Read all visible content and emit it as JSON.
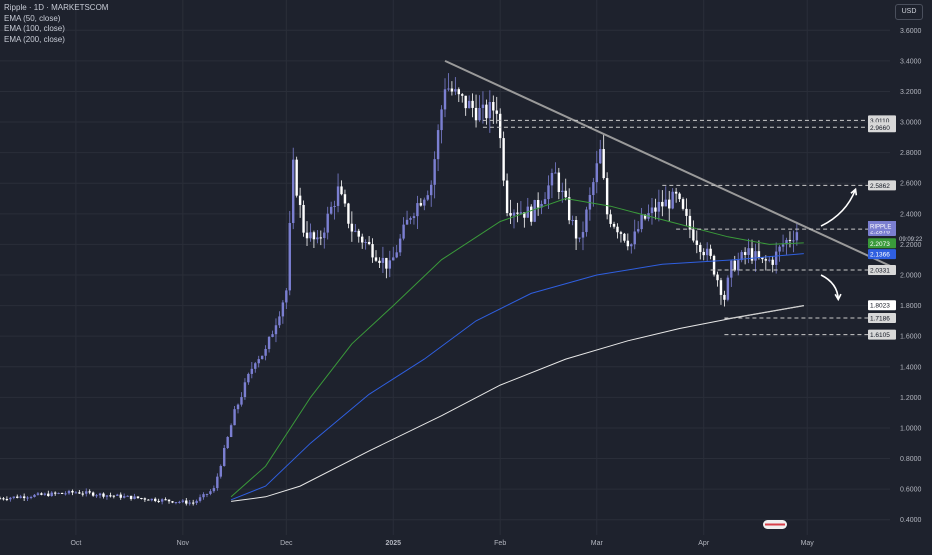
{
  "header": {
    "symbol_line": "Ripple · 1D · MARKETSCOM",
    "indicators": [
      "EMA (50, close)",
      "EMA (100, close)",
      "EMA (200, close)"
    ],
    "currency_button": "USD"
  },
  "colors": {
    "background": "#1e222d",
    "grid": "#2a2e39",
    "axis_text": "#b2b5be",
    "candle_up": "#7b7fd1",
    "candle_down": "#ffffff",
    "ema50": "#3a9a3a",
    "ema100": "#2f5fe0",
    "ema200": "#e8e8e8",
    "trendline": "#9a9a9a",
    "price_tag": "#7b7fd1"
  },
  "chart_data": {
    "type": "candlestick",
    "title": "Ripple · 1D · MARKETSCOM",
    "ylim": [
      0.3,
      3.7
    ],
    "y_ticks": [
      0.4,
      0.6,
      0.8,
      1.0,
      1.2,
      1.4,
      1.6,
      1.8,
      2.0,
      2.2,
      2.4,
      2.6,
      2.8,
      3.0,
      3.2,
      3.4,
      3.6
    ],
    "x_ticks": [
      {
        "label": "Oct",
        "date": "2024-10-01"
      },
      {
        "label": "Nov",
        "date": "2024-11-01"
      },
      {
        "label": "Dec",
        "date": "2024-12-01"
      },
      {
        "label": "2025",
        "date": "2025-01-01"
      },
      {
        "label": "Feb",
        "date": "2025-02-01"
      },
      {
        "label": "Mar",
        "date": "2025-03-01"
      },
      {
        "label": "Apr",
        "date": "2025-04-01"
      },
      {
        "label": "May",
        "date": "2025-05-01"
      }
    ],
    "x_range": [
      "2024-09-09",
      "2025-05-25"
    ],
    "ohlc_keypoints": [
      {
        "date": "2024-09-09",
        "price": 0.54
      },
      {
        "date": "2024-10-01",
        "price": 0.58
      },
      {
        "date": "2024-10-15",
        "price": 0.55
      },
      {
        "date": "2024-11-04",
        "price": 0.51
      },
      {
        "date": "2024-11-10",
        "price": 0.6
      },
      {
        "date": "2024-11-16",
        "price": 1.1
      },
      {
        "date": "2024-11-22",
        "price": 1.45
      },
      {
        "date": "2024-11-25",
        "price": 1.5
      },
      {
        "date": "2024-12-01",
        "price": 1.9
      },
      {
        "date": "2024-12-03",
        "price": 2.7
      },
      {
        "date": "2024-12-06",
        "price": 2.3
      },
      {
        "date": "2024-12-10",
        "price": 2.2
      },
      {
        "date": "2024-12-16",
        "price": 2.55
      },
      {
        "date": "2024-12-20",
        "price": 2.3
      },
      {
        "date": "2024-12-31",
        "price": 2.05
      },
      {
        "date": "2025-01-06",
        "price": 2.4
      },
      {
        "date": "2025-01-12",
        "price": 2.6
      },
      {
        "date": "2025-01-16",
        "price": 3.25
      },
      {
        "date": "2025-01-20",
        "price": 3.15
      },
      {
        "date": "2025-01-27",
        "price": 3.05
      },
      {
        "date": "2025-01-31",
        "price": 3.1
      },
      {
        "date": "2025-02-03",
        "price": 2.45
      },
      {
        "date": "2025-02-10",
        "price": 2.4
      },
      {
        "date": "2025-02-17",
        "price": 2.65
      },
      {
        "date": "2025-02-24",
        "price": 2.2
      },
      {
        "date": "2025-03-02",
        "price": 2.8
      },
      {
        "date": "2025-03-04",
        "price": 2.4
      },
      {
        "date": "2025-03-11",
        "price": 2.2
      },
      {
        "date": "2025-03-14",
        "price": 2.35
      },
      {
        "date": "2025-03-19",
        "price": 2.45
      },
      {
        "date": "2025-03-24",
        "price": 2.5
      },
      {
        "date": "2025-03-28",
        "price": 2.3
      },
      {
        "date": "2025-04-03",
        "price": 2.1
      },
      {
        "date": "2025-04-07",
        "price": 1.85
      },
      {
        "date": "2025-04-09",
        "price": 2.05
      },
      {
        "date": "2025-04-14",
        "price": 2.15
      },
      {
        "date": "2025-04-18",
        "price": 2.08
      },
      {
        "date": "2025-04-21",
        "price": 2.1
      },
      {
        "date": "2025-04-24",
        "price": 2.2
      },
      {
        "date": "2025-04-28",
        "price": 2.29
      }
    ],
    "price_points": [
      {
        "date": "2024-09-09",
        "price": 0.54
      },
      {
        "date": "2024-10-01",
        "price": 0.58
      },
      {
        "date": "2024-10-15",
        "price": 0.55
      },
      {
        "date": "2024-11-04",
        "price": 0.51
      },
      {
        "date": "2024-11-10",
        "price": 0.6
      },
      {
        "date": "2024-11-16",
        "price": 1.1
      },
      {
        "date": "2024-11-22",
        "price": 1.45
      },
      {
        "date": "2024-11-25",
        "price": 1.5
      },
      {
        "date": "2024-12-01",
        "price": 1.9
      },
      {
        "date": "2024-12-03",
        "price": 2.7
      },
      {
        "date": "2024-12-06",
        "price": 2.3
      },
      {
        "date": "2024-12-10",
        "price": 2.2
      },
      {
        "date": "2024-12-16",
        "price": 2.55
      },
      {
        "date": "2024-12-20",
        "price": 2.3
      },
      {
        "date": "2024-12-31",
        "price": 2.05
      },
      {
        "date": "2025-01-06",
        "price": 2.4
      },
      {
        "date": "2025-01-12",
        "price": 2.6
      },
      {
        "date": "2025-01-16",
        "price": 3.25
      },
      {
        "date": "2025-01-20",
        "price": 3.15
      },
      {
        "date": "2025-01-27",
        "price": 3.05
      },
      {
        "date": "2025-01-31",
        "price": 3.1
      },
      {
        "date": "2025-02-03",
        "price": 2.45
      },
      {
        "date": "2025-02-10",
        "price": 2.4
      },
      {
        "date": "2025-02-17",
        "price": 2.65
      },
      {
        "date": "2025-02-24",
        "price": 2.2
      },
      {
        "date": "2025-03-02",
        "price": 2.8
      },
      {
        "date": "2025-03-04",
        "price": 2.4
      },
      {
        "date": "2025-03-11",
        "price": 2.2
      },
      {
        "date": "2025-03-14",
        "price": 2.35
      },
      {
        "date": "2025-03-19",
        "price": 2.45
      },
      {
        "date": "2025-03-24",
        "price": 2.5
      },
      {
        "date": "2025-03-28",
        "price": 2.3
      },
      {
        "date": "2025-04-03",
        "price": 2.1
      },
      {
        "date": "2025-04-07",
        "price": 1.85
      },
      {
        "date": "2025-04-09",
        "price": 2.05
      },
      {
        "date": "2025-04-14",
        "price": 2.15
      },
      {
        "date": "2025-04-18",
        "price": 2.08
      },
      {
        "date": "2025-04-21",
        "price": 2.1
      },
      {
        "date": "2025-04-24",
        "price": 2.2
      },
      {
        "date": "2025-04-28",
        "price": 2.29
      }
    ],
    "ema50": [
      {
        "date": "2024-11-15",
        "price": 0.55
      },
      {
        "date": "2024-11-25",
        "price": 0.75
      },
      {
        "date": "2024-12-08",
        "price": 1.2
      },
      {
        "date": "2024-12-20",
        "price": 1.55
      },
      {
        "date": "2025-01-01",
        "price": 1.8
      },
      {
        "date": "2025-01-15",
        "price": 2.1
      },
      {
        "date": "2025-02-01",
        "price": 2.35
      },
      {
        "date": "2025-02-20",
        "price": 2.5
      },
      {
        "date": "2025-03-05",
        "price": 2.45
      },
      {
        "date": "2025-03-22",
        "price": 2.35
      },
      {
        "date": "2025-04-08",
        "price": 2.25
      },
      {
        "date": "2025-04-20",
        "price": 2.2
      },
      {
        "date": "2025-04-30",
        "price": 2.21
      }
    ],
    "ema100": [
      {
        "date": "2024-11-15",
        "price": 0.53
      },
      {
        "date": "2024-11-25",
        "price": 0.62
      },
      {
        "date": "2024-12-08",
        "price": 0.9
      },
      {
        "date": "2024-12-25",
        "price": 1.22
      },
      {
        "date": "2025-01-10",
        "price": 1.45
      },
      {
        "date": "2025-01-25",
        "price": 1.7
      },
      {
        "date": "2025-02-10",
        "price": 1.88
      },
      {
        "date": "2025-03-01",
        "price": 2.0
      },
      {
        "date": "2025-03-20",
        "price": 2.07
      },
      {
        "date": "2025-04-10",
        "price": 2.1
      },
      {
        "date": "2025-04-30",
        "price": 2.14
      }
    ],
    "ema200": [
      {
        "date": "2024-11-15",
        "price": 0.52
      },
      {
        "date": "2024-11-25",
        "price": 0.55
      },
      {
        "date": "2024-12-05",
        "price": 0.62
      },
      {
        "date": "2024-12-25",
        "price": 0.85
      },
      {
        "date": "2025-01-15",
        "price": 1.08
      },
      {
        "date": "2025-02-01",
        "price": 1.28
      },
      {
        "date": "2025-02-20",
        "price": 1.45
      },
      {
        "date": "2025-03-10",
        "price": 1.57
      },
      {
        "date": "2025-03-25",
        "price": 1.65
      },
      {
        "date": "2025-04-10",
        "price": 1.72
      },
      {
        "date": "2025-04-30",
        "price": 1.8
      }
    ],
    "trendline": [
      {
        "date": "2025-01-16",
        "price": 3.4
      },
      {
        "date": "2025-05-25",
        "price": 2.06
      }
    ],
    "support_line": [
      {
        "date": "2025-04-07",
        "price": 1.71
      },
      {
        "date": "2025-04-30",
        "price": 1.8
      }
    ],
    "levels": [
      {
        "label": "3.0110",
        "price": 3.011,
        "style": "dashed",
        "from": "2025-01-27"
      },
      {
        "label": "2.9660",
        "price": 2.966,
        "style": "dashed",
        "from": "2025-01-27"
      },
      {
        "label": "2.5862",
        "price": 2.5862,
        "style": "dashed",
        "from": "2025-03-20"
      },
      {
        "label": "2.3001",
        "price": 2.3001,
        "style": "dashed",
        "from": "2025-03-24"
      },
      {
        "label": "2.0331",
        "price": 2.0331,
        "style": "dashed",
        "from": "2025-04-03"
      },
      {
        "label": "1.7186",
        "price": 1.7186,
        "style": "dashed",
        "from": "2025-04-07"
      },
      {
        "label": "1.6105",
        "price": 1.6105,
        "style": "dashed",
        "from": "2025-04-07"
      }
    ],
    "price_tags": [
      {
        "label": "3.0110",
        "price": 3.011,
        "bg": "#d8d8d8",
        "fg": "#131722"
      },
      {
        "label": "2.9660",
        "price": 2.966,
        "bg": "#d8d8d8",
        "fg": "#131722"
      },
      {
        "label": "2.5862",
        "price": 2.5862,
        "bg": "#d8d8d8",
        "fg": "#131722"
      },
      {
        "label": "2.3001",
        "price": 2.3001,
        "bg": "#d8d8d8",
        "fg": "#131722"
      },
      {
        "label": "2.2876",
        "price": 2.2876,
        "bg": "#7b7fd1",
        "fg": "#ffffff"
      },
      {
        "label": "2.2073",
        "price": 2.2073,
        "bg": "#3a9a3a",
        "fg": "#ffffff"
      },
      {
        "label": "2.1366",
        "price": 2.1366,
        "bg": "#2f5fe0",
        "fg": "#ffffff"
      },
      {
        "label": "2.0331",
        "price": 2.0331,
        "bg": "#d8d8d8",
        "fg": "#131722"
      },
      {
        "label": "1.8023",
        "price": 1.8023,
        "bg": "#ffffff",
        "fg": "#131722"
      },
      {
        "label": "1.7186",
        "price": 1.7186,
        "bg": "#d8d8d8",
        "fg": "#131722"
      },
      {
        "label": "1.6105",
        "price": 1.6105,
        "bg": "#d8d8d8",
        "fg": "#131722"
      }
    ],
    "symbol_tag": {
      "label": "RIPPLE",
      "price": 2.2876
    },
    "countdown": "09:09:22",
    "arrows": [
      {
        "direction": "up",
        "from": {
          "date": "2025-05-05",
          "price": 2.32
        },
        "to": {
          "date": "2025-05-15",
          "price": 2.56
        }
      },
      {
        "direction": "down",
        "from": {
          "date": "2025-05-05",
          "price": 2.0
        },
        "to": {
          "date": "2025-05-10",
          "price": 1.84
        }
      }
    ]
  }
}
